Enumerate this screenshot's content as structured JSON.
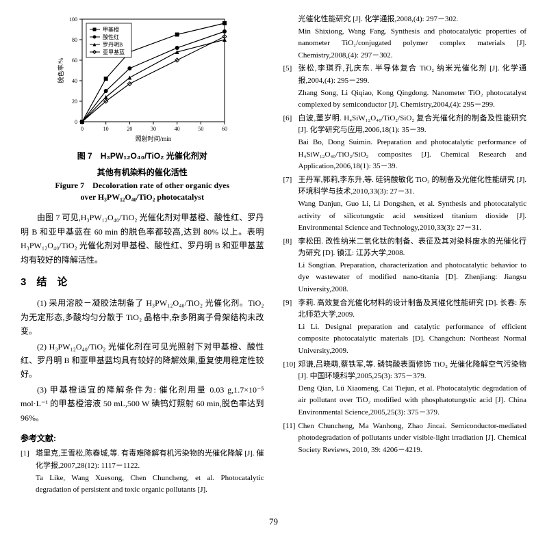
{
  "chart": {
    "type": "line",
    "xlabel": "照射时间/min",
    "ylabel": "脱色率/%",
    "xlim": [
      0,
      60
    ],
    "ylim": [
      0,
      100
    ],
    "xticks": [
      0,
      10,
      20,
      30,
      40,
      50,
      60
    ],
    "yticks": [
      0,
      20,
      40,
      60,
      80,
      100
    ],
    "background_color": "#ffffff",
    "axis_color": "#000000",
    "tick_fontsize": 8,
    "label_fontsize": 9,
    "legend_fontsize": 8,
    "line_width": 1.2,
    "marker_size": 4,
    "series": [
      {
        "name": "甲基橙",
        "marker": "square",
        "color": "#000000",
        "x": [
          0,
          10,
          20,
          40,
          60
        ],
        "y": [
          0,
          42,
          68,
          85,
          96
        ]
      },
      {
        "name": "酸性红",
        "marker": "circle",
        "color": "#000000",
        "x": [
          0,
          10,
          20,
          40,
          60
        ],
        "y": [
          0,
          30,
          52,
          72,
          88
        ]
      },
      {
        "name": "罗丹明B",
        "marker": "triangle",
        "color": "#000000",
        "x": [
          0,
          10,
          20,
          40,
          60
        ],
        "y": [
          0,
          24,
          43,
          68,
          80
        ]
      },
      {
        "name": "亚甲基蓝",
        "marker": "diamond",
        "color": "#000000",
        "x": [
          0,
          10,
          20,
          40,
          60
        ],
        "y": [
          0,
          20,
          37,
          60,
          83
        ]
      }
    ],
    "legend_pos": "top-left-inset"
  },
  "caption_cn_line1": "图 7 H₃PW₁₂O₄₀/TiO₂ 光催化剂对",
  "caption_cn_line2": "其他有机染料的催化活性",
  "caption_en_line1": "Figure 7 Decoloration rate of other organic dyes",
  "caption_en_line2": "over H₃PW₁₂O₄₀/TiO₂ photocatalyst",
  "para1": "由图 7 可见,H₃PW₁₂O₄₀/TiO₂ 光催化剂对甲基橙、酸性红、罗丹明 B 和亚甲基蓝在 60 min 的脱色率都较高,达到 80% 以上。表明 H₃PW₁₂O₄₀/TiO₂ 光催化剂对甲基橙、酸性红、罗丹明 B 和亚甲基蓝均有较好的降解活性。",
  "section": "3 结 论",
  "conc1": "(1) 采用溶胶－凝胶法制备了 H₃PW₁₂O₄₀/TiO₂ 光催化剂。TiO₂ 为无定形态,多酸均匀分散于 TiO₂ 晶格中,杂多阴离子骨架结构未改变。",
  "conc2": "(2) H₃PW₁₂O₄₀/TiO₂ 光催化剂在可见光照射下对甲基橙、酸性红、罗丹明 B 和亚甲基蓝均具有较好的降解效果,重复使用稳定性较好。",
  "conc3": "(3) 甲基橙适宜的降解条件为: 催化剂用量 0.03 g,1.7×10⁻⁵ mol·L⁻¹ 的甲基橙溶液 50 mL,500 W 碘钨灯照射 60 min,脱色率达到 96%。",
  "refs_title": "参考文献:",
  "ref1_cn": "塔里克,王雪松,陈春城,等. 有毒难降解有机污染物的光催化降解 [J]. 催化学报,2007,28(12): 1117－1122.",
  "ref1_en": "Ta Like, Wang Xuesong, Chen Chuncheng, et al. Photocatalytic degradation of persistent and toxic organic pollutants [J].",
  "ref4b_cn": "光催化性能研究 [J]. 化学通报,2008,(4): 297－302.",
  "ref4b_en": "Min Shixiong, Wang Fang. Synthesis and photocatalytic properties of nanometer TiO₂/conjugated polymer complex materials [J]. Chemistry,2008,(4): 297－302.",
  "ref5_cn": "张松,李琪乔,孔庆东. 半导体复合 TiO₂ 纳米光催化剂 [J]. 化学通报,2004,(4): 295－299.",
  "ref5_en": "Zhang Song, Li Qiqiao, Kong Qingdong. Nanometer TiO₂ photocatalyst complexed by semiconductor [J]. Chemistry,2004,(4): 295－299.",
  "ref6_cn": "白波,董岁明. H₄SiW₁₂O₄₀/TiO₂/SiO₂ 复合光催化剂的制备及性能研究 [J]. 化学研究与应用,2006,18(1): 35－39.",
  "ref6_en": "Bai Bo, Dong Suimin. Preparation and photocatalytic performance of H₄SiW₁₂O₄₀/TiO₂/SiO₂ composites [J]. Chemical Research and Application,2006,18(1): 35－39.",
  "ref7_cn": "王丹军,郭莉,李东升,等. 硅钨酸敏化 TiO₂ 的制备及光催化性能研究 [J]. 环境科学与技术,2010,33(3): 27－31.",
  "ref7_en": "Wang Danjun, Guo Li, Li Dongshen, et al. Synthesis and photocatalytic activity of silicotungstic acid sensitized titanium dioxide [J]. Environmental Science and Technology,2010,33(3): 27－31.",
  "ref8_cn": "李松田. 改性纳米二氧化钛的制备、表征及其对染料废水的光催化行为研究 [D]. 镇江: 江苏大学,2008.",
  "ref8_en": "Li Songtian. Preparation, characterization and photocatalytic behavior to dye wastewater of modified nano-titania [D]. Zhenjiang: Jiangsu University,2008.",
  "ref9_cn": "李莉. 高效复合光催化材料的设计制备及其催化性能研究 [D]. 长春: 东北师范大学,2009.",
  "ref9_en": "Li Li. Designal preparation and catalytic performance of efficient composite photocatalytic materials [D]. Changchun: Northeast Normal University,2009.",
  "ref10_cn": "邓谦,吕晓萌,蔡铁军,等. 磷钨酸表面修饰 TiO₂ 光催化降解空气污染物 [J]. 中国环境科学,2005,25(3): 375－379.",
  "ref10_en": "Deng Qian, Lü Xiaomeng, Cai Tiejun, et al. Photocatalytic degradation of air pollutant over TiO₂ modified with phosphatotungstic acid [J]. China Environmental Science,2005,25(3): 375－379.",
  "ref11_en": "Chen Chuncheng, Ma Wanhong, Zhao Jincai. Semiconductor-mediated photodegradation of pollutants under visible-light irradiation [J]. Chemical Society Reviews, 2010, 39: 4206－4219.",
  "pagenum": "79"
}
